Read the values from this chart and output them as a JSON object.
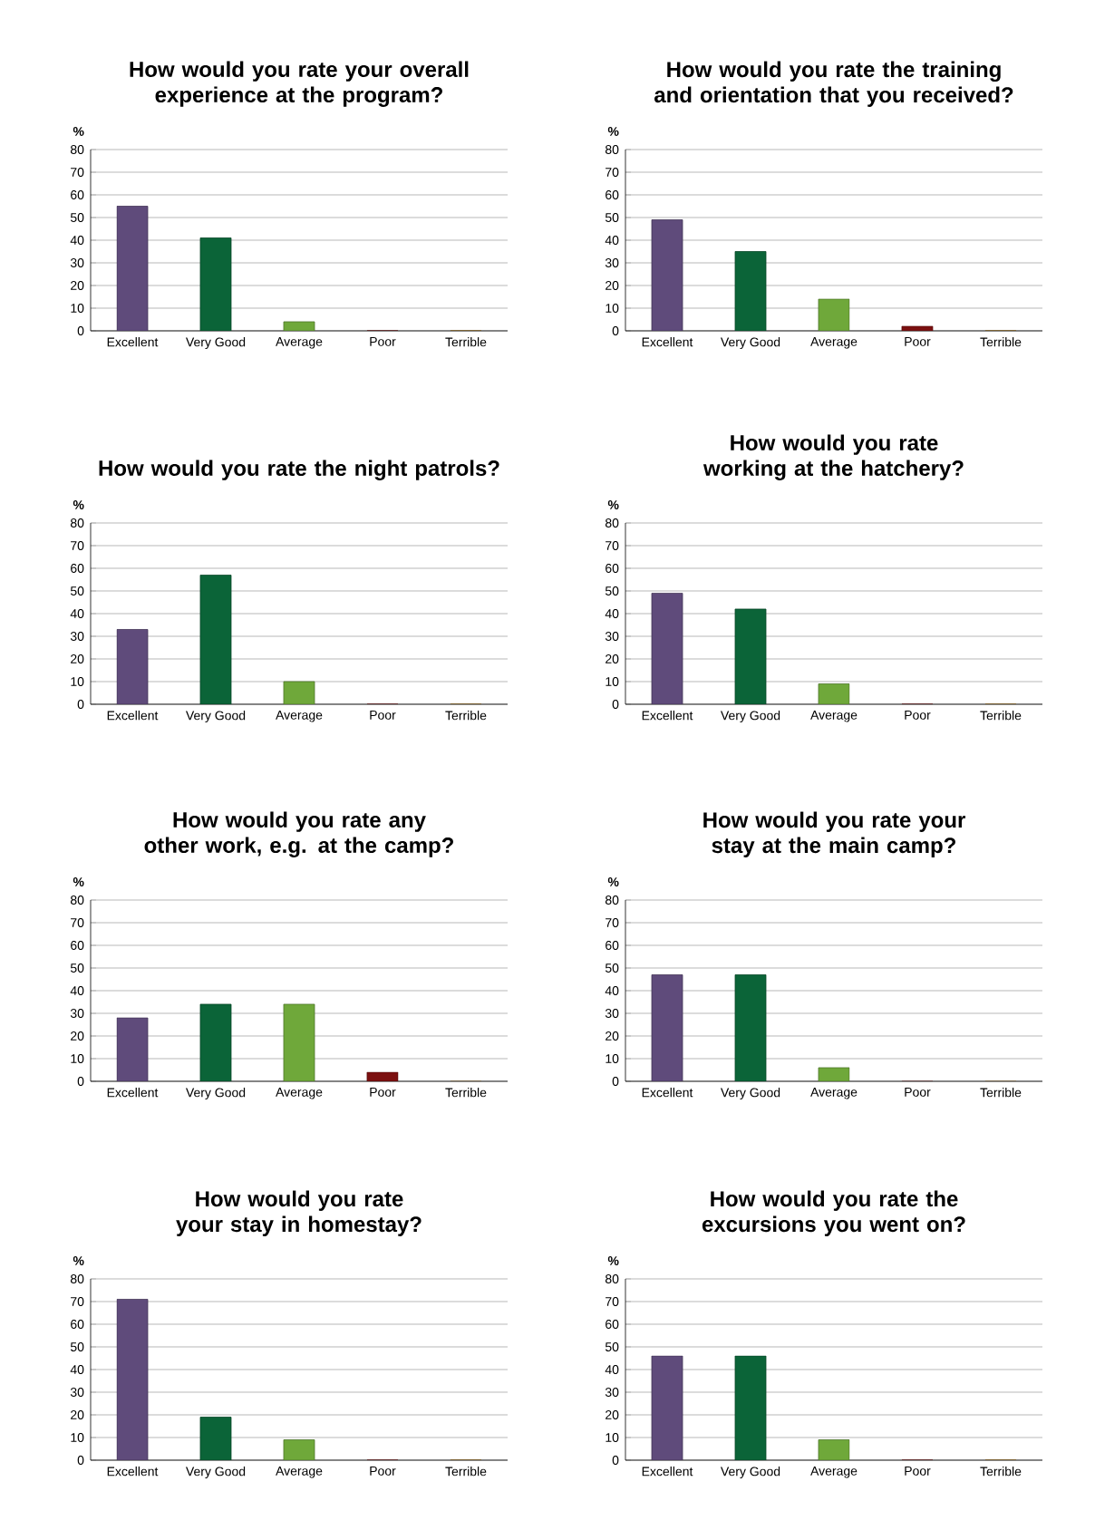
{
  "chart_data": [
    {
      "type": "bar",
      "title": "How would you rate your overall experience at the program?",
      "ylabel": "%",
      "categories": [
        "Excellent",
        "Very Good",
        "Average",
        "Poor",
        "Terrible"
      ],
      "values": [
        55,
        41,
        4,
        0,
        0
      ],
      "colors": [
        "#5f4b7b",
        "#0b6438",
        "#6fa83a",
        "#7c1010",
        "#b07a1a"
      ],
      "ylim": [
        0,
        80
      ],
      "yticks": [
        0,
        10,
        20,
        30,
        40,
        50,
        60,
        70,
        80
      ],
      "grid": "y"
    },
    {
      "type": "bar",
      "title": "How would you rate the training and orientation that you received?",
      "ylabel": "%",
      "categories": [
        "Excellent",
        "Very Good",
        "Average",
        "Poor",
        "Terrible"
      ],
      "values": [
        49,
        35,
        14,
        2,
        0
      ],
      "colors": [
        "#5f4b7b",
        "#0b6438",
        "#6fa83a",
        "#7c1010",
        "#b07a1a"
      ],
      "ylim": [
        0,
        80
      ],
      "yticks": [
        0,
        10,
        20,
        30,
        40,
        50,
        60,
        70,
        80
      ],
      "grid": "y"
    },
    {
      "type": "bar",
      "title": "How would you rate the night patrols?",
      "ylabel": "%",
      "categories": [
        "Excellent",
        "Very Good",
        "Average",
        "Poor",
        "Terrible"
      ],
      "values": [
        33,
        57,
        10,
        0,
        0
      ],
      "colors": [
        "#5f4b7b",
        "#0b6438",
        "#6fa83a",
        "#7c1010",
        "#b07a1a"
      ],
      "ylim": [
        0,
        80
      ],
      "yticks": [
        0,
        10,
        20,
        30,
        40,
        50,
        60,
        70,
        80
      ],
      "grid": "y"
    },
    {
      "type": "bar",
      "title": "How would you rate working at the hatchery?",
      "ylabel": "%",
      "categories": [
        "Excellent",
        "Very Good",
        "Average",
        "Poor",
        "Terrible"
      ],
      "values": [
        49,
        42,
        9,
        0,
        0
      ],
      "colors": [
        "#5f4b7b",
        "#0b6438",
        "#6fa83a",
        "#7c1010",
        "#b07a1a"
      ],
      "ylim": [
        0,
        80
      ],
      "yticks": [
        0,
        10,
        20,
        30,
        40,
        50,
        60,
        70,
        80
      ],
      "grid": "y"
    },
    {
      "type": "bar",
      "title": "How would you rate any other work, e.g. at the camp?",
      "ylabel": "%",
      "categories": [
        "Excellent",
        "Very Good",
        "Average",
        "Poor",
        "Terrible"
      ],
      "values": [
        28,
        34,
        34,
        4,
        0
      ],
      "colors": [
        "#5f4b7b",
        "#0b6438",
        "#6fa83a",
        "#7c1010",
        "#b07a1a"
      ],
      "ylim": [
        0,
        80
      ],
      "yticks": [
        0,
        10,
        20,
        30,
        40,
        50,
        60,
        70,
        80
      ],
      "grid": "y"
    },
    {
      "type": "bar",
      "title": "How would you rate your stay at the main camp?",
      "ylabel": "%",
      "categories": [
        "Excellent",
        "Very Good",
        "Average",
        "Poor",
        "Terrible"
      ],
      "values": [
        47,
        47,
        6,
        0,
        0
      ],
      "colors": [
        "#5f4b7b",
        "#0b6438",
        "#6fa83a",
        "#7c1010",
        "#b07a1a"
      ],
      "ylim": [
        0,
        80
      ],
      "yticks": [
        0,
        10,
        20,
        30,
        40,
        50,
        60,
        70,
        80
      ],
      "grid": "y"
    },
    {
      "type": "bar",
      "title": "How would you rate your stay in homestay?",
      "ylabel": "%",
      "categories": [
        "Excellent",
        "Very Good",
        "Average",
        "Poor",
        "Terrible"
      ],
      "values": [
        71,
        19,
        9,
        0,
        0
      ],
      "colors": [
        "#5f4b7b",
        "#0b6438",
        "#6fa83a",
        "#7c1010",
        "#b07a1a"
      ],
      "ylim": [
        0,
        80
      ],
      "yticks": [
        0,
        10,
        20,
        30,
        40,
        50,
        60,
        70,
        80
      ],
      "grid": "y"
    },
    {
      "type": "bar",
      "title": "How would you rate the excursions you went on?",
      "ylabel": "%",
      "categories": [
        "Excellent",
        "Very Good",
        "Average",
        "Poor",
        "Terrible"
      ],
      "values": [
        46,
        46,
        9,
        0,
        0
      ],
      "colors": [
        "#5f4b7b",
        "#0b6438",
        "#6fa83a",
        "#7c1010",
        "#b07a1a"
      ],
      "ylim": [
        0,
        80
      ],
      "yticks": [
        0,
        10,
        20,
        30,
        40,
        50,
        60,
        70,
        80
      ],
      "grid": "y"
    }
  ]
}
